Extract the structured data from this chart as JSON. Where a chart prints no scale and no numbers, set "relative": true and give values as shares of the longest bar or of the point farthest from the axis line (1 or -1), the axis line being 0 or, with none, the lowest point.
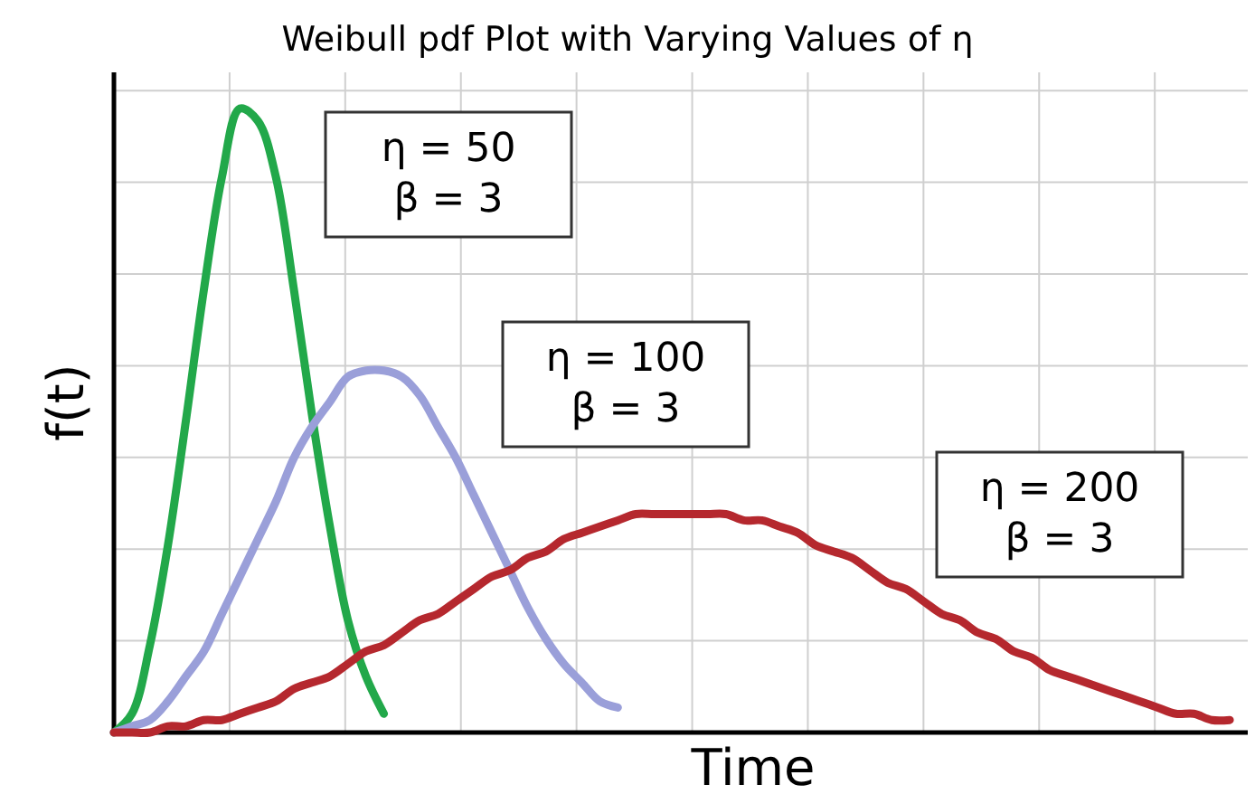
{
  "chart_data": {
    "type": "line",
    "title": "Weibull pdf Plot with Varying Values of η",
    "xlabel": "Time",
    "ylabel": "f(t)",
    "relative": true,
    "grid": true,
    "tick_labels": false,
    "line_style": "solid",
    "marker": "none",
    "categories": [
      null,
      null,
      null,
      null,
      null,
      null,
      null,
      null,
      null,
      null,
      null,
      null,
      null,
      null,
      null,
      null,
      null,
      null,
      null,
      null,
      null,
      null,
      null,
      null,
      null,
      null,
      null,
      null,
      null,
      null,
      null,
      null,
      null,
      null,
      null,
      null,
      null,
      null,
      null,
      null,
      null,
      null,
      null,
      null,
      null,
      null,
      null,
      null,
      null,
      null,
      null,
      null,
      null,
      null,
      null,
      null,
      null,
      null,
      null,
      null,
      null,
      null,
      null
    ],
    "series": [
      {
        "name": "η = 50\nβ = 3",
        "color": "#22a84a",
        "values": [
          0,
          0.03,
          0.14,
          0.3,
          0.5,
          0.71,
          0.89,
          1,
          0.98,
          0.89,
          0.71,
          0.51,
          0.33,
          0.18,
          0.09,
          0.03,
          null,
          null,
          null,
          null,
          null,
          null,
          null,
          null,
          null,
          null,
          null,
          null,
          null,
          null,
          null,
          null,
          null,
          null,
          null,
          null,
          null,
          null,
          null,
          null,
          null,
          null,
          null,
          null,
          null,
          null,
          null,
          null,
          null,
          null,
          null,
          null,
          null,
          null,
          null,
          null,
          null,
          null,
          null,
          null,
          null,
          null,
          null
        ]
      },
      {
        "name": "η = 100\nβ = 3",
        "color": "#9a9fd9",
        "values": [
          0,
          0.01,
          0.02,
          0.05,
          0.09,
          0.13,
          0.19,
          0.25,
          0.31,
          0.37,
          0.44,
          0.49,
          0.53,
          0.57,
          0.58,
          0.58,
          0.57,
          0.54,
          0.49,
          0.44,
          0.38,
          0.32,
          0.26,
          0.2,
          0.15,
          0.11,
          0.08,
          0.05,
          0.04,
          null,
          null,
          null,
          null,
          null,
          null,
          null,
          null,
          null,
          null,
          null,
          null,
          null,
          null,
          null,
          null,
          null,
          null,
          null,
          null,
          null,
          null,
          null,
          null,
          null,
          null,
          null,
          null,
          null,
          null,
          null,
          null,
          null,
          null
        ]
      },
      {
        "name": "η = 200\nβ = 3",
        "color": "#b5282e",
        "values": [
          0,
          0,
          0,
          0.01,
          0.01,
          0.02,
          0.02,
          0.03,
          0.04,
          0.05,
          0.07,
          0.08,
          0.09,
          0.11,
          0.13,
          0.14,
          0.16,
          0.18,
          0.19,
          0.21,
          0.23,
          0.25,
          0.26,
          0.28,
          0.29,
          0.31,
          0.32,
          0.33,
          0.34,
          0.35,
          0.35,
          0.35,
          0.35,
          0.35,
          0.35,
          0.34,
          0.34,
          0.33,
          0.32,
          0.3,
          0.29,
          0.28,
          0.26,
          0.24,
          0.23,
          0.21,
          0.19,
          0.18,
          0.16,
          0.15,
          0.13,
          0.12,
          0.1,
          0.09,
          0.08,
          0.07,
          0.06,
          0.05,
          0.04,
          0.03,
          0.03,
          0.02,
          0.02
        ]
      }
    ]
  }
}
